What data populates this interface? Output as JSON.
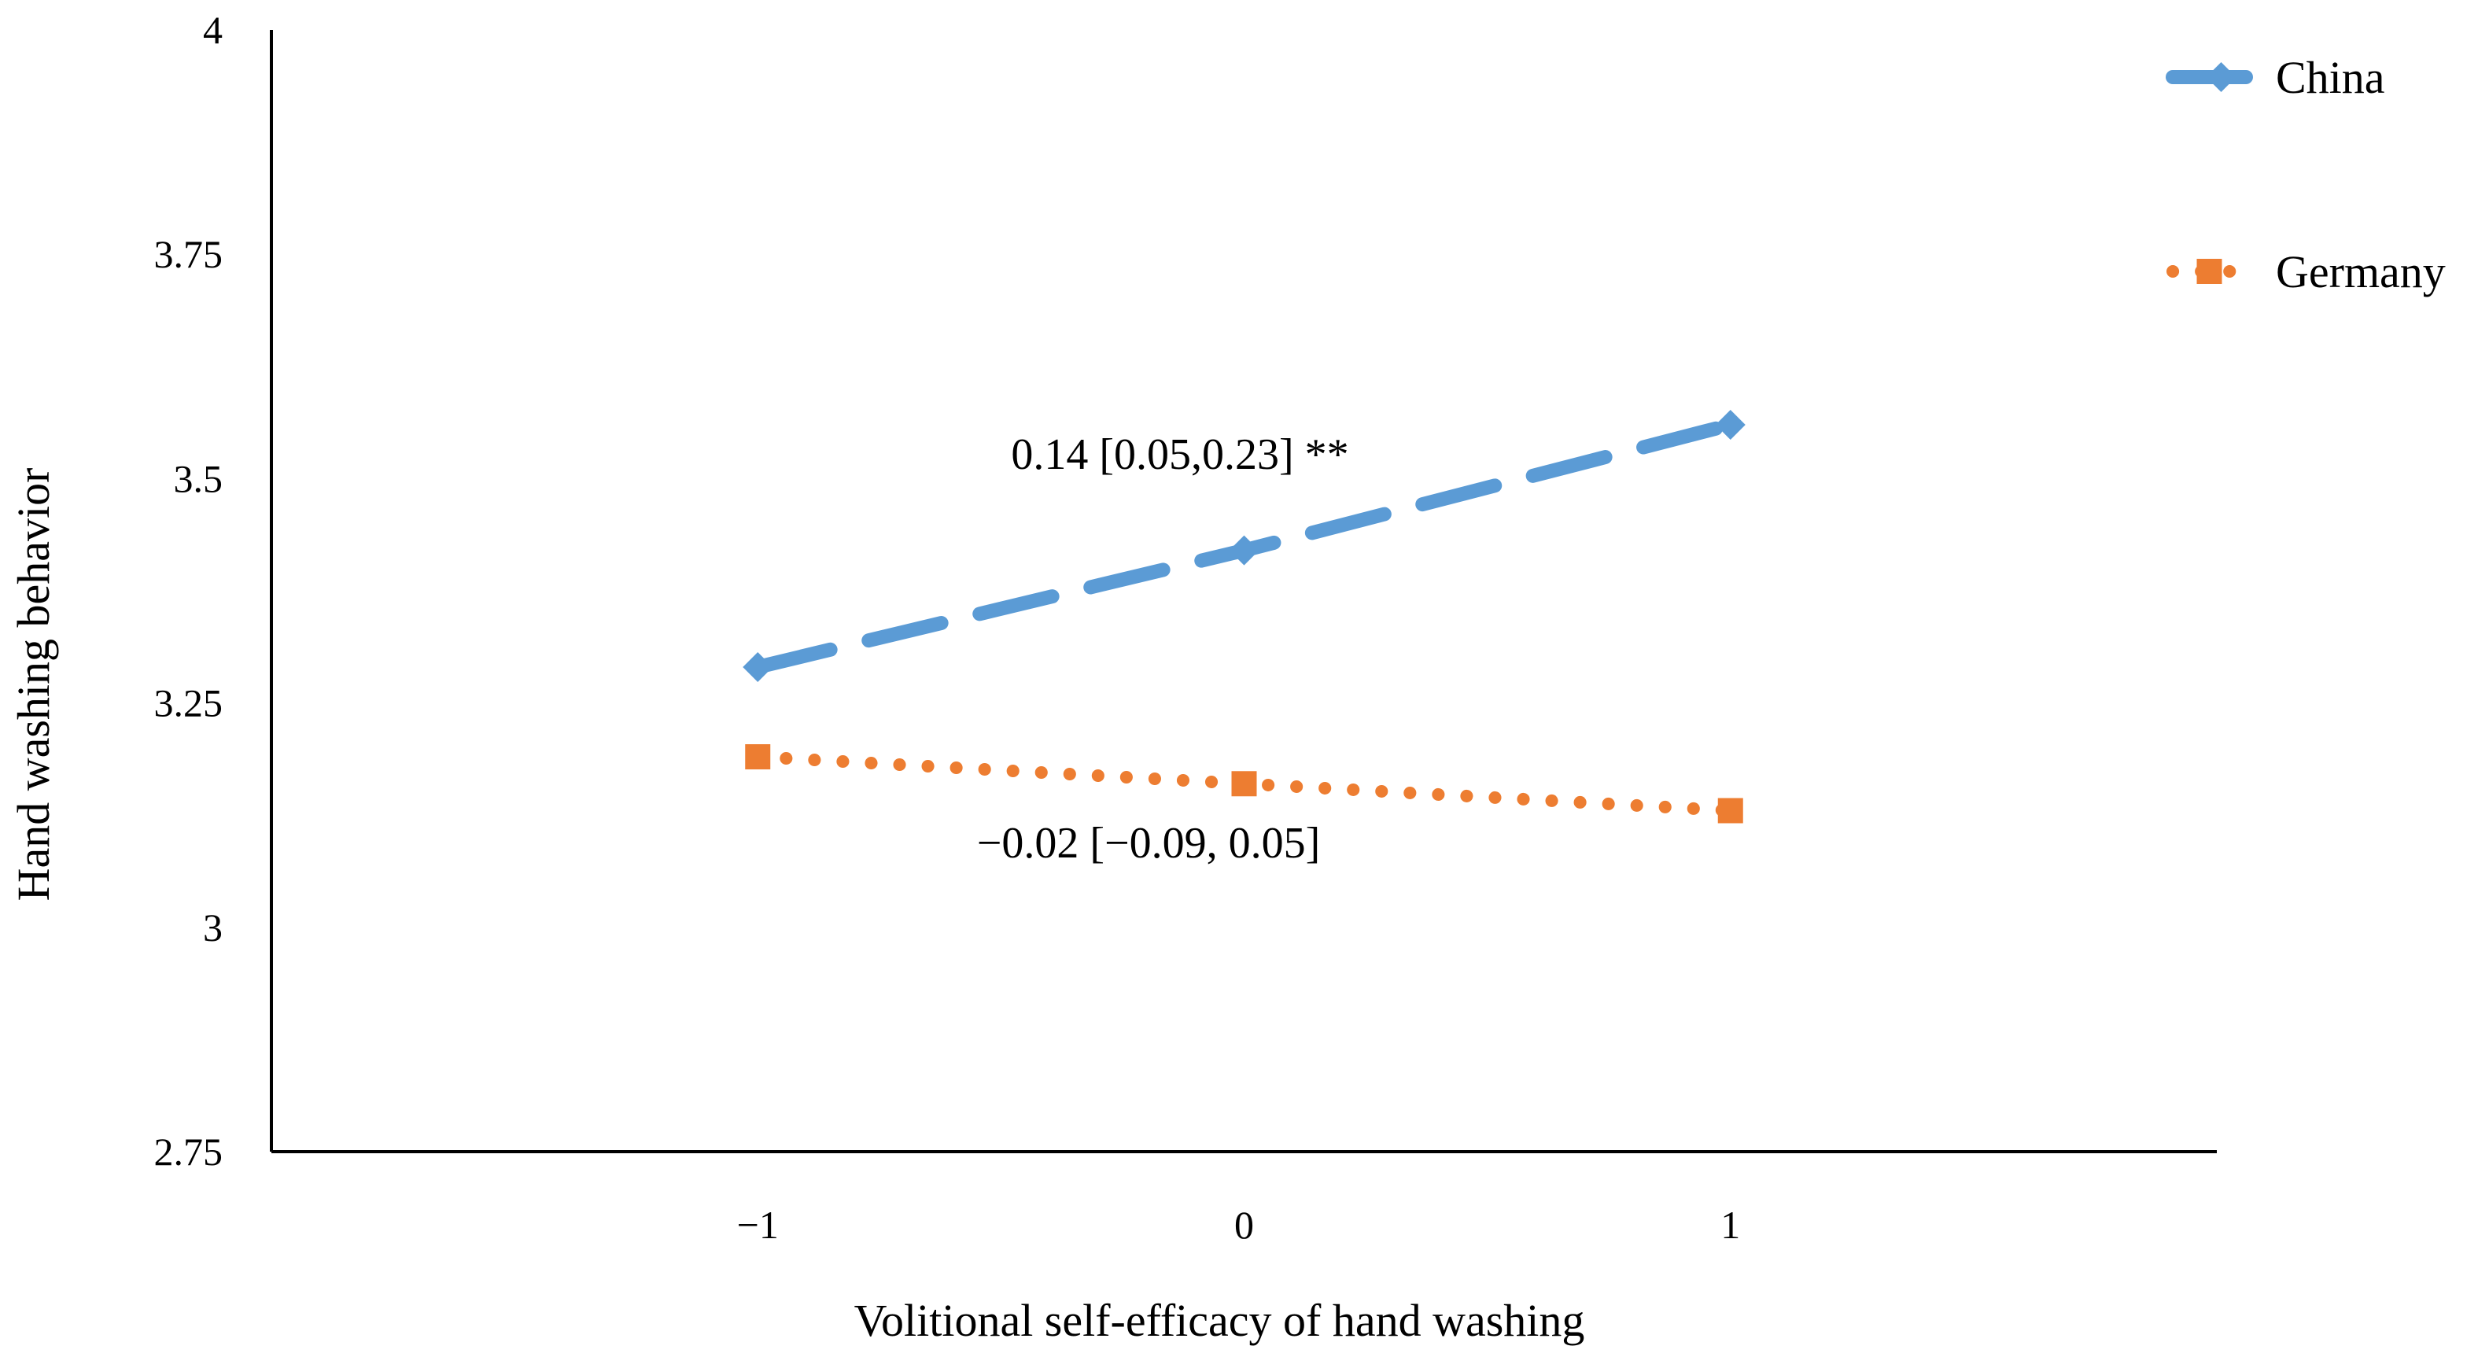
{
  "chart_data": {
    "type": "line",
    "title": "",
    "xlabel": "Volitional self-efficacy of hand washing",
    "ylabel": "Hand washing behavior",
    "x": [
      -1,
      0,
      1
    ],
    "x_tick_labels": [
      "−1",
      "0",
      "1"
    ],
    "xlim": [
      -2,
      2
    ],
    "ylim": [
      2.75,
      4
    ],
    "y_ticks": [
      2.75,
      3,
      3.25,
      3.5,
      3.75,
      4
    ],
    "y_tick_labels": [
      "2.75",
      "3",
      "3.25",
      "3.5",
      "3.75",
      "4"
    ],
    "grid": false,
    "legend_position": "top-right",
    "series": [
      {
        "name": "China",
        "values": [
          3.29,
          3.42,
          3.56
        ],
        "color": "#5B9BD5",
        "line_style": "dashed",
        "marker": "diamond"
      },
      {
        "name": "Germany",
        "values": [
          3.19,
          3.16,
          3.13
        ],
        "color": "#ED7D31",
        "line_style": "dotted",
        "marker": "square"
      }
    ],
    "annotations": [
      {
        "series": "China",
        "text": "0.14 [0.05,0.23] **"
      },
      {
        "series": "Germany",
        "text": "−0.02 [−0.09, 0.05]"
      }
    ]
  }
}
